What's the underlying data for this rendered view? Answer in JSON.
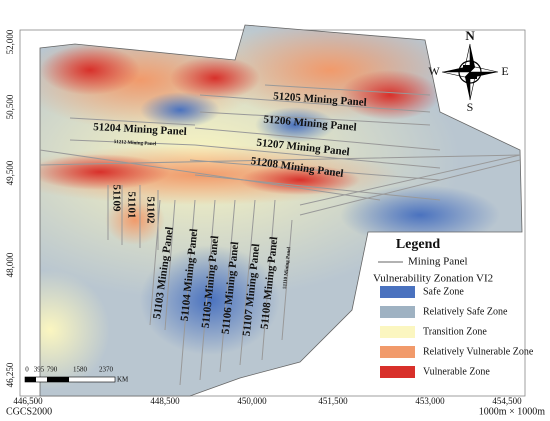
{
  "map": {
    "x_labels": [
      "446,500",
      "448,500",
      "450,000",
      "451,500",
      "453,000",
      "454,500"
    ],
    "y_labels": [
      "52,000",
      "50,500",
      "49,500",
      "48,000",
      "46,250"
    ],
    "panels": [
      {
        "label": "51205 Mining Panel"
      },
      {
        "label": "51206 Mining Panel"
      },
      {
        "label": "51207 Mining Panel"
      },
      {
        "label": "51208 Mining Panel"
      },
      {
        "label": "51204 Mining Panel"
      },
      {
        "label": "51212 Mining Panel"
      },
      {
        "label": "51109"
      },
      {
        "label": "51101"
      },
      {
        "label": "51102"
      },
      {
        "label": "51103 Mining Panel"
      },
      {
        "label": "51104 Mining Panel"
      },
      {
        "label": "51105 Mining Panel"
      },
      {
        "label": "51106 Mining Panel"
      },
      {
        "label": "51107 Mining Panel"
      },
      {
        "label": "51108 Mining Panel"
      },
      {
        "label": "51110 Mining Panel"
      }
    ],
    "compass": {
      "n": "N",
      "e": "E",
      "s": "S",
      "w": "W"
    },
    "legend": {
      "title": "Legend",
      "line_label": "Mining Panel",
      "subtitle": "Vulnerability Zonation VI2",
      "items": [
        {
          "label": "Safe Zone",
          "color": "#4a72bf"
        },
        {
          "label": "Relatively Safe Zone",
          "color": "#9fb2c2"
        },
        {
          "label": "Transition Zone",
          "color": "#fbf6c0"
        },
        {
          "label": "Relatively Vulnerable Zone",
          "color": "#f19a6b"
        },
        {
          "label": "Vulnerable Zone",
          "color": "#d8302a"
        }
      ]
    },
    "scale_bar": {
      "ticks": [
        "0",
        "395",
        "790",
        "1580",
        "2370"
      ],
      "unit": "KM"
    },
    "crs": "CGCS2000",
    "grid_note": "1000m × 1000m"
  }
}
